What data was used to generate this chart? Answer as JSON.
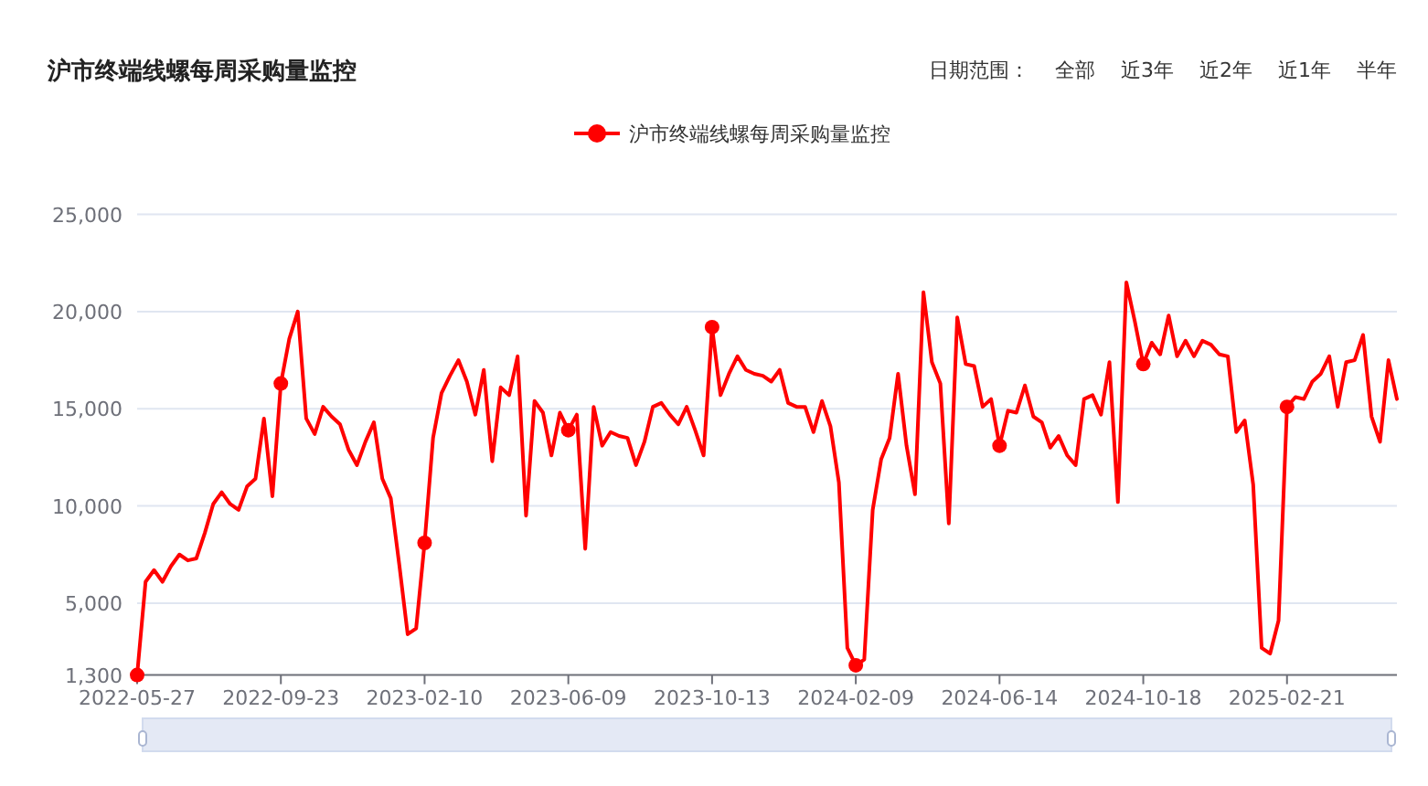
{
  "chart_data": {
    "type": "line",
    "title": "沪市终端线螺每周采购量监控",
    "annotations": [
      "日期范围：",
      "全部",
      "近3年",
      "近2年",
      "近1年",
      "半年"
    ],
    "legend": "top",
    "grid": "y",
    "ylim": [
      1300,
      25000
    ],
    "yticks": [
      {
        "value": 1300,
        "label": "1,300"
      },
      {
        "value": 5000,
        "label": "5,000"
      },
      {
        "value": 10000,
        "label": "10,000"
      },
      {
        "value": 15000,
        "label": "15,000"
      },
      {
        "value": 20000,
        "label": "20,000"
      },
      {
        "value": 25000,
        "label": "25,000"
      }
    ],
    "categories": [
      "2022-05-27",
      null,
      null,
      null,
      null,
      null,
      null,
      null,
      null,
      null,
      null,
      null,
      null,
      null,
      null,
      null,
      null,
      "2022-09-23",
      null,
      null,
      null,
      null,
      null,
      null,
      null,
      null,
      null,
      null,
      null,
      null,
      null,
      null,
      null,
      null,
      "2023-02-10",
      null,
      null,
      null,
      null,
      null,
      null,
      null,
      null,
      null,
      null,
      null,
      null,
      null,
      null,
      null,
      null,
      "2023-06-09",
      null,
      null,
      null,
      null,
      null,
      null,
      null,
      null,
      null,
      null,
      null,
      null,
      null,
      null,
      null,
      null,
      "2023-10-13",
      null,
      null,
      null,
      null,
      null,
      null,
      null,
      null,
      null,
      null,
      null,
      null,
      null,
      null,
      null,
      null,
      "2024-02-09",
      null,
      null,
      null,
      null,
      null,
      null,
      null,
      null,
      null,
      null,
      null,
      null,
      null,
      null,
      null,
      null,
      "2024-06-14",
      null,
      null,
      null,
      null,
      null,
      null,
      null,
      null,
      null,
      null,
      null,
      null,
      null,
      null,
      null,
      null,
      "2024-10-18",
      null,
      null,
      null,
      null,
      null,
      null,
      null,
      null,
      null,
      null,
      null,
      null,
      null,
      null,
      null,
      null,
      "2025-02-21",
      null,
      null,
      null,
      null,
      null,
      null,
      null,
      null,
      null,
      null,
      null,
      null,
      null
    ],
    "series": [
      {
        "name": "沪市终端线螺每周采购量监控",
        "color": "#ff0000",
        "values": [
          1300,
          6100,
          6700,
          6100,
          6900,
          7500,
          7200,
          7300,
          8600,
          10100,
          10700,
          10100,
          9800,
          11000,
          11400,
          14500,
          10500,
          16300,
          18600,
          20000,
          14500,
          13700,
          15100,
          14600,
          14200,
          12900,
          12100,
          13300,
          14300,
          11400,
          10400,
          7000,
          3400,
          3700,
          8100,
          13500,
          15800,
          16700,
          17500,
          16400,
          14700,
          17000,
          12300,
          16100,
          15700,
          17700,
          9500,
          15400,
          14800,
          12600,
          14800,
          13900,
          14700,
          7800,
          15100,
          13100,
          13800,
          13600,
          13500,
          12100,
          13300,
          15100,
          15300,
          14700,
          14200,
          15100,
          13900,
          12600,
          19200,
          15700,
          16800,
          17700,
          17000,
          16800,
          16700,
          16400,
          17000,
          15300,
          15100,
          15100,
          13800,
          15400,
          14100,
          11200,
          2700,
          1800,
          2100,
          9800,
          12400,
          13500,
          16800,
          13100,
          10600,
          21000,
          17400,
          16300,
          9100,
          19700,
          17300,
          17200,
          15100,
          15500,
          13100,
          14900,
          14800,
          16200,
          14600,
          14300,
          13000,
          13600,
          12600,
          12100,
          15500,
          15700,
          14700,
          17400,
          10200,
          21500,
          19500,
          17300,
          18400,
          17800,
          19800,
          17700,
          18500,
          17700,
          18500,
          18300,
          17800,
          17700,
          13800,
          14400,
          11100,
          2700,
          2400,
          4100,
          15100,
          15600,
          15500,
          16400,
          16800,
          17700,
          15100,
          17400,
          17500,
          18800,
          14600,
          13300,
          17500,
          15500
        ]
      },
      {
        "type": "scatter",
        "color": "#ff0000",
        "values": [
          1300,
          null,
          null,
          null,
          null,
          null,
          null,
          null,
          null,
          null,
          null,
          null,
          null,
          null,
          null,
          null,
          null,
          16300,
          null,
          null,
          null,
          null,
          null,
          null,
          null,
          null,
          null,
          null,
          null,
          null,
          null,
          null,
          null,
          null,
          8100,
          null,
          null,
          null,
          null,
          null,
          null,
          null,
          null,
          null,
          null,
          null,
          null,
          null,
          null,
          null,
          null,
          13900,
          null,
          null,
          null,
          null,
          null,
          null,
          null,
          null,
          null,
          null,
          null,
          null,
          null,
          null,
          null,
          null,
          19200,
          null,
          null,
          null,
          null,
          null,
          null,
          null,
          null,
          null,
          null,
          null,
          null,
          null,
          null,
          null,
          null,
          1800,
          null,
          null,
          null,
          null,
          null,
          null,
          null,
          null,
          null,
          null,
          null,
          null,
          null,
          null,
          null,
          null,
          13100,
          null,
          null,
          null,
          null,
          null,
          null,
          null,
          null,
          null,
          null,
          null,
          null,
          null,
          null,
          null,
          null,
          17300,
          null,
          null,
          null,
          null,
          null,
          null,
          null,
          null,
          null,
          null,
          null,
          null,
          null,
          null,
          null,
          null,
          15100,
          null,
          null,
          null,
          null,
          null,
          null,
          null,
          null,
          null,
          null,
          null,
          null,
          null
        ]
      }
    ]
  }
}
